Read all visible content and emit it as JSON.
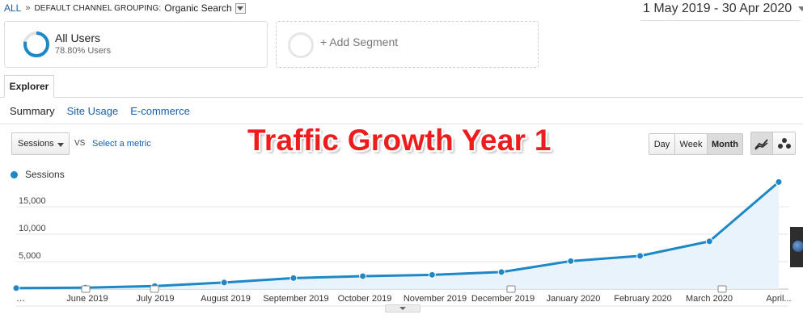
{
  "breadcrumb": {
    "all": "ALL",
    "separator": "»",
    "dimension": "DEFAULT CHANNEL GROUPING:",
    "value": "Organic Search"
  },
  "date_range": "1 May 2019 - 30 Apr 2020",
  "segments": {
    "active": {
      "name": "All Users",
      "percent_label": "78.80% Users",
      "percent": 78.8
    },
    "add_label": "+ Add Segment"
  },
  "tabs": {
    "explorer": "Explorer"
  },
  "subtabs": [
    "Summary",
    "Site Usage",
    "E-commerce"
  ],
  "metric": {
    "selected": "Sessions",
    "vs": "VS",
    "select_metric": "Select a metric"
  },
  "overlay_title": "Traffic Growth Year 1",
  "period_buttons": [
    {
      "label": "Day",
      "active": false
    },
    {
      "label": "Week",
      "active": false
    },
    {
      "label": "Month",
      "active": true
    }
  ],
  "chart_type_buttons": [
    "line-chart-icon",
    "motion-chart-icon"
  ],
  "chart_data": {
    "type": "area",
    "legend": "Sessions",
    "series_color": "#1e88c7",
    "fill_color": "#e8f3fb",
    "x": [
      "…",
      "June 2019",
      "July 2019",
      "August 2019",
      "September 2019",
      "October 2019",
      "November 2019",
      "December 2019",
      "January 2020",
      "February 2020",
      "March 2020",
      "April..."
    ],
    "values": [
      180,
      250,
      550,
      1200,
      2000,
      2350,
      2600,
      3100,
      5100,
      6050,
      8700,
      19500
    ],
    "y_ticks": [
      5000,
      10000,
      15000
    ],
    "y_tick_labels": [
      "5,000",
      "10,000",
      "15,000"
    ],
    "ylim": [
      0,
      20000
    ],
    "annotation_markers": [
      1,
      2,
      7,
      10
    ],
    "grid": true
  }
}
